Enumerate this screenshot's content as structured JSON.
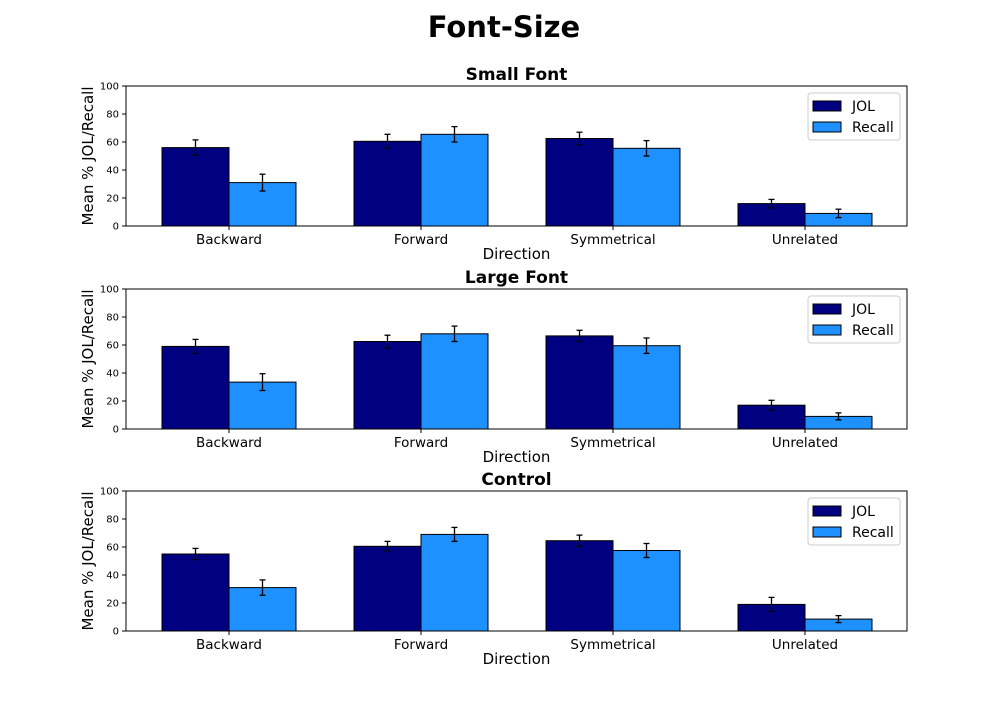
{
  "figure_title": "Font-Size",
  "colors": {
    "JOL": "#000080",
    "Recall": "#1e90ff"
  },
  "chart_data": [
    {
      "type": "bar",
      "title": "Small Font",
      "xlabel": "Direction",
      "ylabel": "Mean % JOL/Recall",
      "ylim": [
        0,
        100
      ],
      "yticks": [
        0,
        20,
        40,
        60,
        80,
        100
      ],
      "categories": [
        "Backward",
        "Forward",
        "Symmetrical",
        "Unrelated"
      ],
      "legend": "top-right",
      "series": [
        {
          "name": "JOL",
          "values": [
            56,
            60.5,
            62.5,
            16
          ],
          "errors": [
            5.5,
            5,
            4.5,
            3
          ]
        },
        {
          "name": "Recall",
          "values": [
            31,
            65.5,
            55.5,
            9
          ],
          "errors": [
            6,
            5.5,
            5.5,
            3
          ]
        }
      ]
    },
    {
      "type": "bar",
      "title": "Large Font",
      "xlabel": "Direction",
      "ylabel": "Mean % JOL/Recall",
      "ylim": [
        0,
        100
      ],
      "yticks": [
        0,
        20,
        40,
        60,
        80,
        100
      ],
      "categories": [
        "Backward",
        "Forward",
        "Symmetrical",
        "Unrelated"
      ],
      "legend": "top-right",
      "series": [
        {
          "name": "JOL",
          "values": [
            59,
            62.5,
            66.5,
            17
          ],
          "errors": [
            5,
            4.5,
            4,
            3.5
          ]
        },
        {
          "name": "Recall",
          "values": [
            33.5,
            68,
            59.5,
            9
          ],
          "errors": [
            6,
            5.5,
            5.5,
            2.5
          ]
        }
      ]
    },
    {
      "type": "bar",
      "title": "Control",
      "xlabel": "Direction",
      "ylabel": "Mean % JOL/Recall",
      "ylim": [
        0,
        100
      ],
      "yticks": [
        0,
        20,
        40,
        60,
        80,
        100
      ],
      "categories": [
        "Backward",
        "Forward",
        "Symmetrical",
        "Unrelated"
      ],
      "legend": "top-right",
      "series": [
        {
          "name": "JOL",
          "values": [
            55,
            60.5,
            64.5,
            19
          ],
          "errors": [
            4,
            3.5,
            4,
            5
          ]
        },
        {
          "name": "Recall",
          "values": [
            31,
            69,
            57.5,
            8.5
          ],
          "errors": [
            5.5,
            5,
            5,
            2.5
          ]
        }
      ]
    }
  ]
}
